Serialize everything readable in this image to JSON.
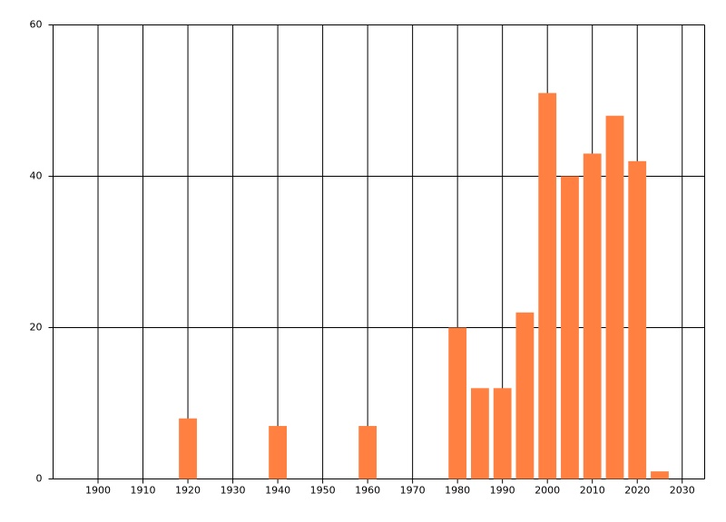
{
  "chart_data": {
    "type": "bar",
    "x": [
      1920,
      1940,
      1960,
      1980,
      1985,
      1990,
      1995,
      2000,
      2005,
      2010,
      2015,
      2020,
      2025
    ],
    "values": [
      8,
      7,
      7,
      20,
      12,
      12,
      22,
      51,
      40,
      43,
      48,
      42,
      1
    ],
    "color": "#ff8040",
    "xlim": [
      1890,
      2035
    ],
    "xticks": [
      1900,
      1910,
      1920,
      1930,
      1940,
      1950,
      1960,
      1970,
      1980,
      1990,
      2000,
      2010,
      2020,
      2030
    ],
    "ylim": [
      0,
      60
    ],
    "yticks": [
      0,
      20,
      40,
      60
    ],
    "grid": true
  }
}
